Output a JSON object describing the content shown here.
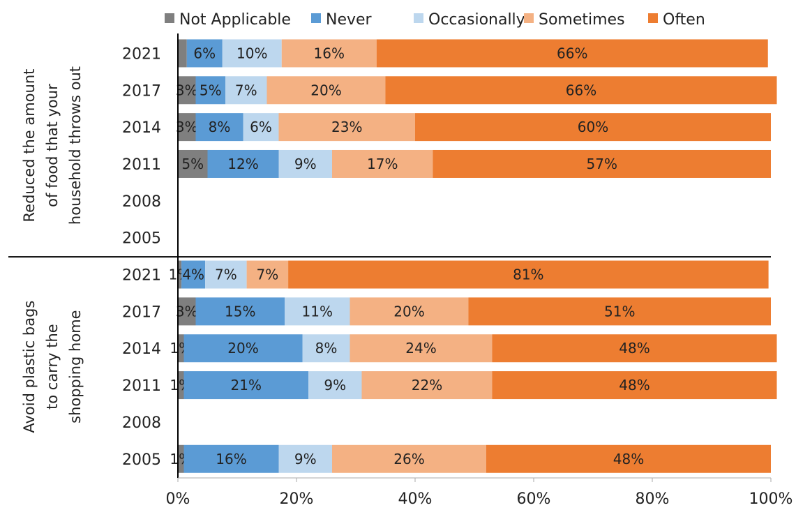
{
  "chart_data": {
    "type": "bar",
    "orientation": "horizontal",
    "stacked": true,
    "xlim": [
      0,
      100
    ],
    "x_ticks": [
      "0%",
      "20%",
      "40%",
      "60%",
      "80%",
      "100%"
    ],
    "grid": false,
    "legend_position": "top",
    "series": [
      {
        "name": "Not Applicable",
        "color": "#7f7f7f"
      },
      {
        "name": "Never",
        "color": "#5b9bd5"
      },
      {
        "name": "Occasionally",
        "color": "#bdd7ee"
      },
      {
        "name": "Sometimes",
        "color": "#f4b183"
      },
      {
        "name": "Often",
        "color": "#ed7d31"
      }
    ],
    "groups": [
      {
        "label": "Reduced the amount of food that your household throws out",
        "label_lines": [
          "Reduced the amount",
          "of food that your",
          "household throws out"
        ],
        "rows": [
          {
            "year": "2021",
            "values": [
              1.5,
              6,
              10,
              16,
              66
            ],
            "labels": [
              "",
              "6%",
              "10%",
              "16%",
              "66%"
            ]
          },
          {
            "year": "2017",
            "values": [
              3,
              5,
              7,
              20,
              66
            ],
            "labels": [
              "3%",
              "5%",
              "7%",
              "20%",
              "66%"
            ]
          },
          {
            "year": "2014",
            "values": [
              3,
              8,
              6,
              23,
              60
            ],
            "labels": [
              "3%",
              "8%",
              "6%",
              "23%",
              "60%"
            ]
          },
          {
            "year": "2011",
            "values": [
              5,
              12,
              9,
              17,
              57
            ],
            "labels": [
              "5%",
              "12%",
              "9%",
              "17%",
              "57%"
            ]
          },
          {
            "year": "2008",
            "values": [
              0,
              0,
              0,
              0,
              0
            ],
            "labels": [
              "",
              "",
              "",
              "",
              ""
            ]
          },
          {
            "year": "2005",
            "values": [
              0,
              0,
              0,
              0,
              0
            ],
            "labels": [
              "",
              "",
              "",
              "",
              ""
            ]
          }
        ]
      },
      {
        "label": "Avoid plastic bags to carry the shopping home",
        "label_lines": [
          "Avoid plastic bags",
          "to carry the",
          "shopping home"
        ],
        "rows": [
          {
            "year": "2021",
            "values": [
              0.6,
              4,
              7,
              7,
              81
            ],
            "labels": [
              "1%",
              "4%",
              "7%",
              "7%",
              "81%"
            ]
          },
          {
            "year": "2017",
            "values": [
              3,
              15,
              11,
              20,
              51
            ],
            "labels": [
              "3%",
              "15%",
              "11%",
              "20%",
              "51%"
            ]
          },
          {
            "year": "2014",
            "values": [
              1,
              20,
              8,
              24,
              48
            ],
            "labels": [
              "1%",
              "20%",
              "8%",
              "24%",
              "48%"
            ]
          },
          {
            "year": "2011",
            "values": [
              1,
              21,
              9,
              22,
              48
            ],
            "labels": [
              "1%",
              "21%",
              "9%",
              "22%",
              "48%"
            ]
          },
          {
            "year": "2008",
            "values": [
              0,
              0,
              0,
              0,
              0
            ],
            "labels": [
              "",
              "",
              "",
              "",
              ""
            ]
          },
          {
            "year": "2005",
            "values": [
              1,
              16,
              9,
              26,
              48
            ],
            "labels": [
              "1%",
              "16%",
              "9%",
              "26%",
              "48%"
            ]
          }
        ]
      }
    ]
  }
}
